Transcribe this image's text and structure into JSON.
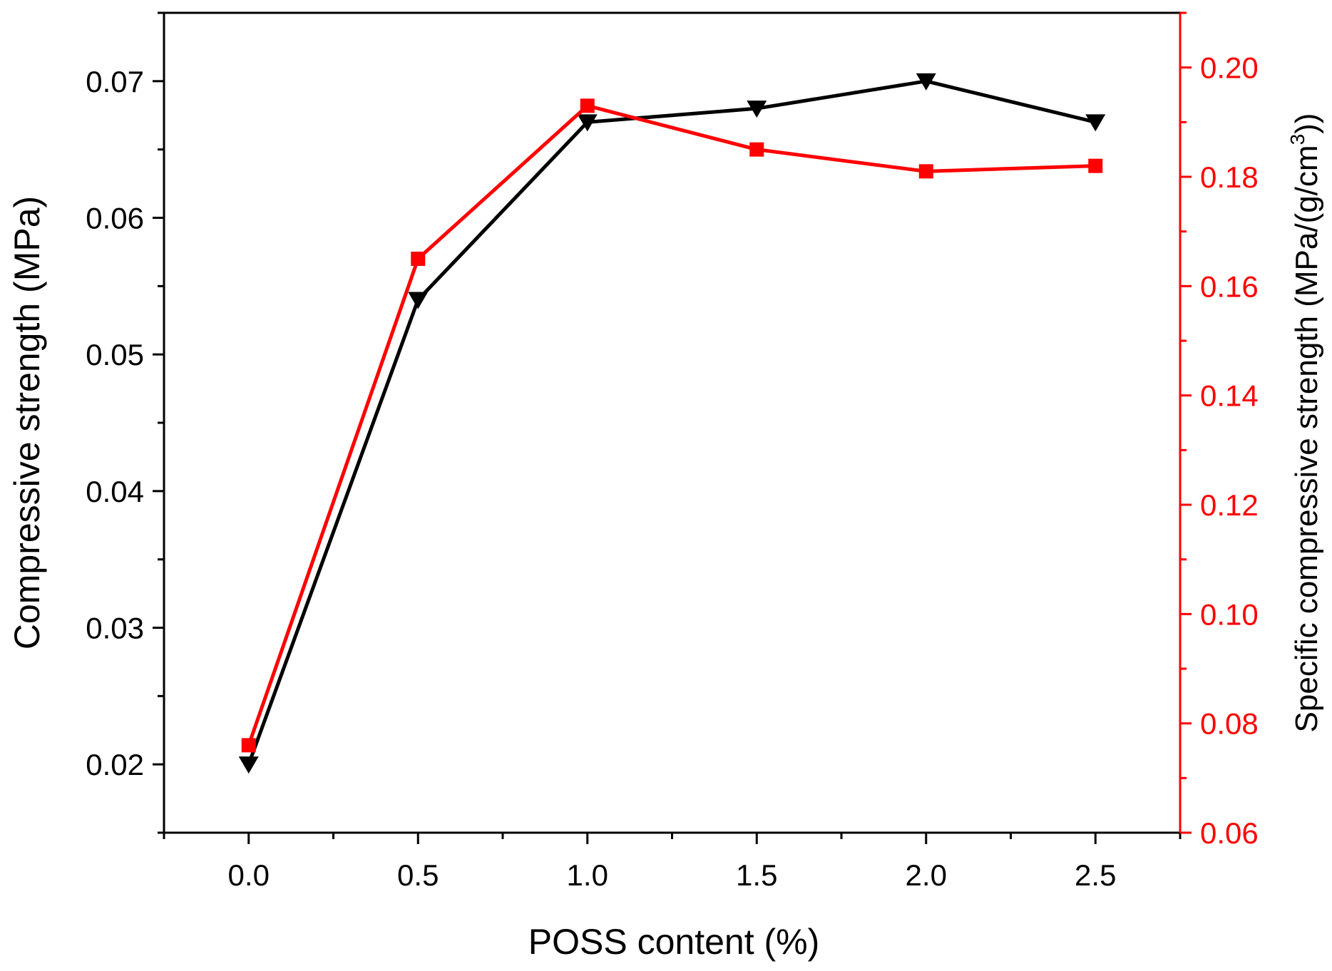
{
  "chart_data": {
    "type": "line",
    "title": "",
    "xlabel": "POSS content (%)",
    "ylabel": "Compressive strength (MPa)",
    "y2label": "Specific compressive strength (MPa/(g/cm³))",
    "y2label_parts": {
      "main": "Specific compressive strength (MPa/(g/cm",
      "sup": "3",
      "end": "))"
    },
    "xlim": [
      -0.25,
      2.75
    ],
    "ylim": [
      0.015,
      0.075
    ],
    "y2lim": [
      0.06,
      0.21
    ],
    "xticks": [
      0.0,
      0.5,
      1.0,
      1.5,
      2.0,
      2.5
    ],
    "xtick_labels": [
      "0.0",
      "0.5",
      "1.0",
      "1.5",
      "2.0",
      "2.5"
    ],
    "yticks": [
      0.02,
      0.03,
      0.04,
      0.05,
      0.06,
      0.07
    ],
    "ytick_labels": [
      "0.02",
      "0.03",
      "0.04",
      "0.05",
      "0.06",
      "0.07"
    ],
    "y2ticks": [
      0.06,
      0.08,
      0.1,
      0.12,
      0.14,
      0.16,
      0.18,
      0.2
    ],
    "y2tick_labels": [
      "0.06",
      "0.08",
      "0.10",
      "0.12",
      "0.14",
      "0.16",
      "0.18",
      "0.20"
    ],
    "x": [
      0.0,
      0.5,
      1.0,
      1.5,
      2.0,
      2.5
    ],
    "series": [
      {
        "name": "Compressive strength",
        "axis": "left",
        "marker": "down-triangle",
        "color": "#000000",
        "values": [
          0.02,
          0.054,
          0.067,
          0.068,
          0.07,
          0.067
        ]
      },
      {
        "name": "Specific compressive strength",
        "axis": "right",
        "marker": "square",
        "color": "#ff0000",
        "values": [
          0.076,
          0.165,
          0.193,
          0.185,
          0.181,
          0.182
        ]
      }
    ],
    "grid": false,
    "legend": "none"
  }
}
